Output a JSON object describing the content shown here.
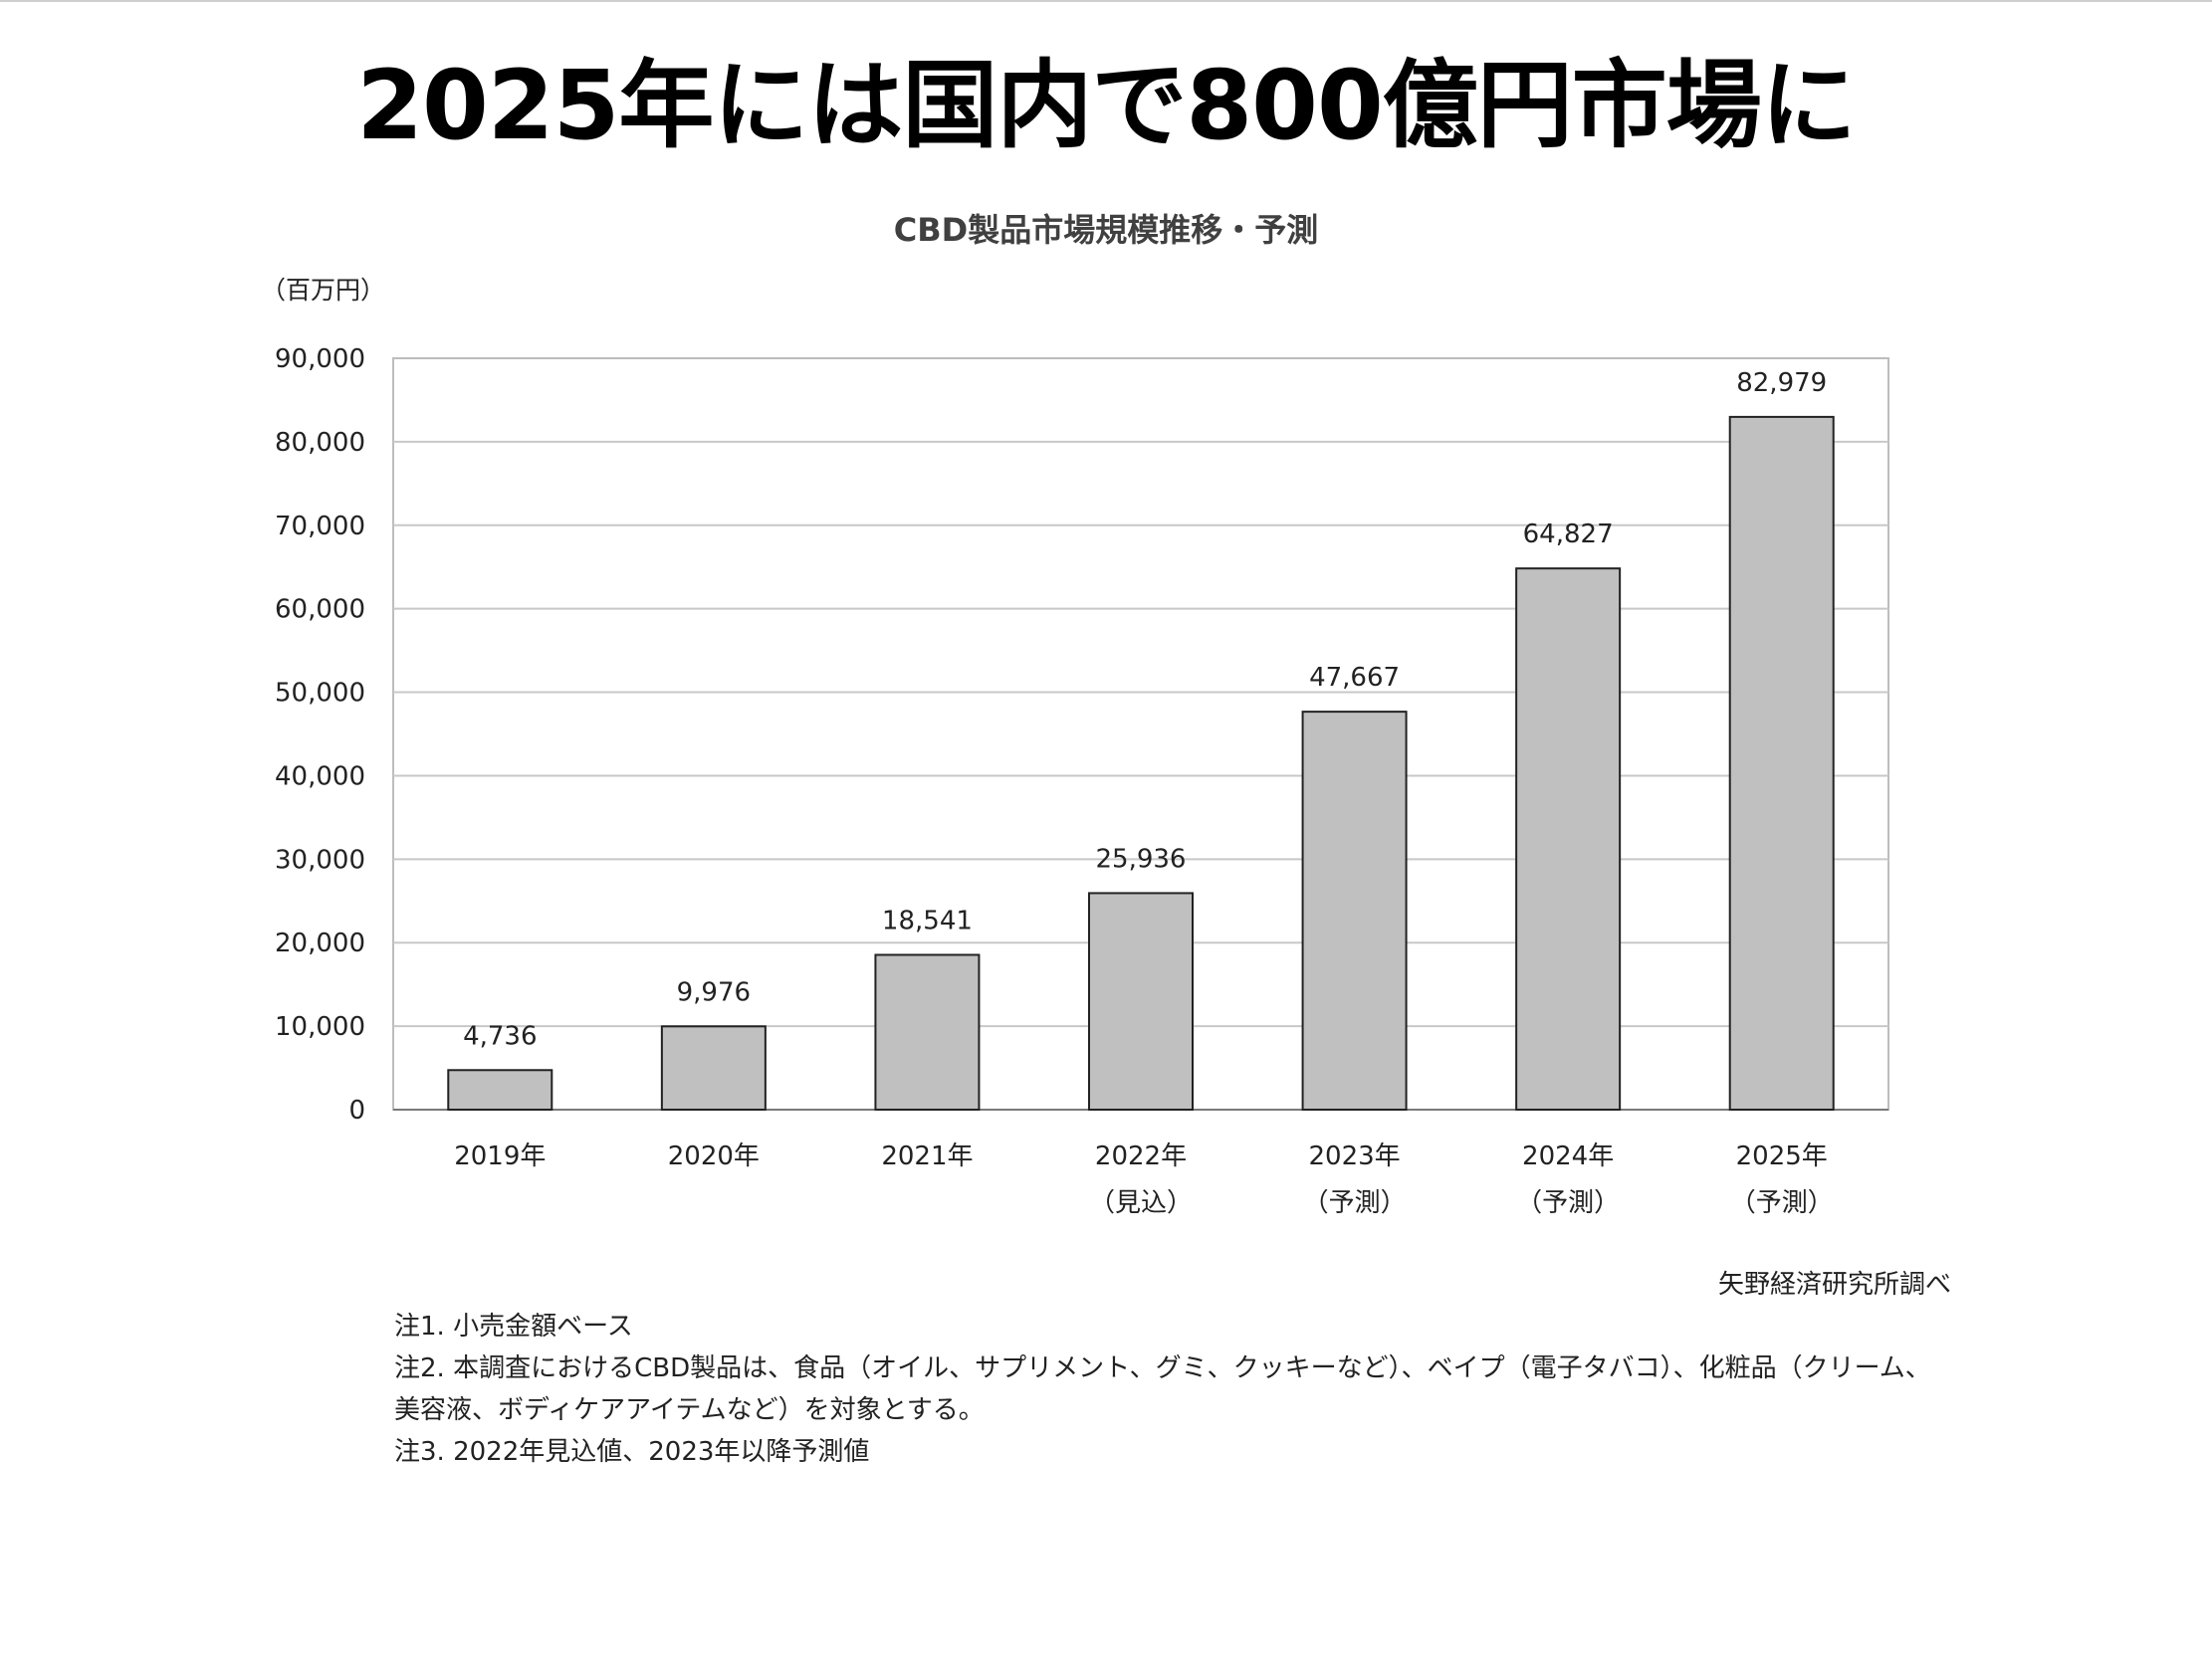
{
  "slide": {
    "title": "2025年には国内で800億円市場に"
  },
  "chart_data": {
    "type": "bar",
    "title": "CBD製品市場規模推移・予測",
    "unit_label": "（百万円）",
    "categories": [
      [
        "2019年",
        ""
      ],
      [
        "2020年",
        ""
      ],
      [
        "2021年",
        ""
      ],
      [
        "2022年",
        "（見込）"
      ],
      [
        "2023年",
        "（予測）"
      ],
      [
        "2024年",
        "（予測）"
      ],
      [
        "2025年",
        "（予測）"
      ]
    ],
    "values": [
      4736,
      9976,
      18541,
      25936,
      47667,
      64827,
      82979
    ],
    "value_labels": [
      "4,736",
      "9,976",
      "18,541",
      "25,936",
      "47,667",
      "64,827",
      "82,979"
    ],
    "ylim": [
      0,
      90000
    ],
    "yticks": [
      0,
      10000,
      20000,
      30000,
      40000,
      50000,
      60000,
      70000,
      80000,
      90000
    ],
    "ytick_labels": [
      "0",
      "10,000",
      "20,000",
      "30,000",
      "40,000",
      "50,000",
      "60,000",
      "70,000",
      "80,000",
      "90,000"
    ],
    "grid": true,
    "bar_color": "#c0c0c0",
    "bar_edge_color": "#222222",
    "grid_color": "#c8c8c8"
  },
  "source": "矢野経済研究所調べ",
  "notes": [
    "注1. 小売金額ベース",
    "注2. 本調査におけるCBD製品は、食品（オイル、サプリメント、グミ、クッキーなど）、ベイプ（電子タバコ）、化粧品（クリーム、美容液、ボディケアアイテムなど）を対象とする。",
    "注3. 2022年見込値、2023年以降予測値"
  ]
}
